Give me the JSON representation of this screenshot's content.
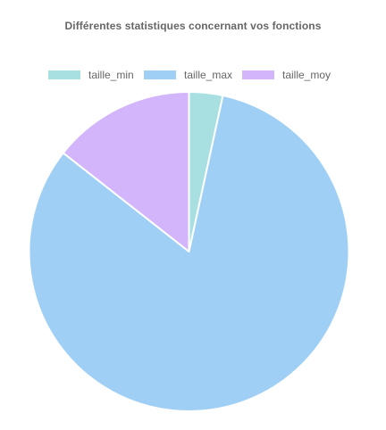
{
  "chart_data": {
    "type": "pie",
    "title": "Différentes statistiques concernant vos fonctions",
    "legend_position": "top",
    "categories": [
      "taille_min",
      "taille_max",
      "taille_moy"
    ],
    "values": [
      3.4,
      82.2,
      14.4
    ],
    "colors": [
      "#a8e0e2",
      "#9fcff5",
      "#d2b5fb"
    ],
    "slice_border_color": "#ffffff"
  }
}
